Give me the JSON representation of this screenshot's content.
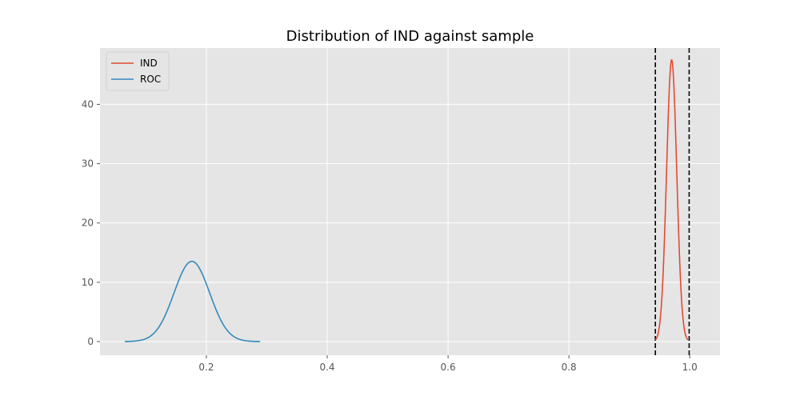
{
  "chart_data": {
    "type": "line",
    "title": "Distribution of IND against sample",
    "xlabel": "",
    "ylabel": "",
    "xlim": [
      0.024,
      1.05
    ],
    "ylim": [
      -2.3,
      49.5
    ],
    "xticks": [
      0.2,
      0.4,
      0.6,
      0.8,
      1.0
    ],
    "xtick_labels": [
      "0.2",
      "0.4",
      "0.6",
      "0.8",
      "1.0"
    ],
    "yticks": [
      0,
      10,
      20,
      30,
      40
    ],
    "ytick_labels": [
      "0",
      "10",
      "20",
      "30",
      "40"
    ],
    "grid": true,
    "legend_position": "top-left",
    "series": [
      {
        "name": "IND",
        "color": "#E24A33",
        "distribution": "normal",
        "mean": 0.97,
        "std": 0.0084,
        "x_range": [
          0.943,
          0.997
        ]
      },
      {
        "name": "ROC",
        "color": "#348ABD",
        "distribution": "normal",
        "mean": 0.176,
        "std": 0.0295,
        "x_range": [
          0.065,
          0.289
        ]
      }
    ],
    "vlines": [
      {
        "x": 0.943,
        "style": "dashed",
        "color": "#000000"
      },
      {
        "x": 0.999,
        "style": "dashed",
        "color": "#000000"
      }
    ]
  }
}
